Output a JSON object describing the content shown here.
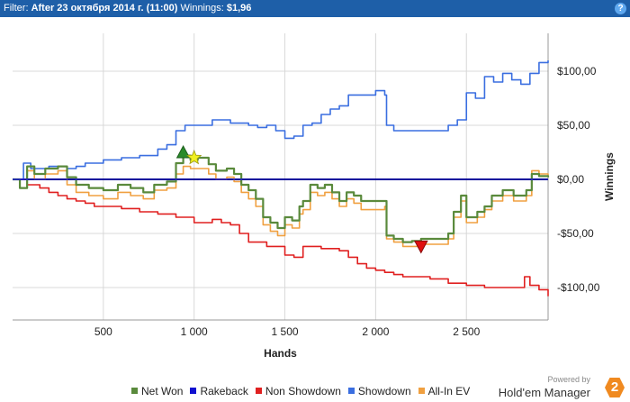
{
  "header": {
    "filter_label": "Filter:",
    "filter_value": "After 23 октября 2014 г. (11:00)",
    "winnings_label": "Winnings:",
    "winnings_value": "$1,96",
    "help_label": "?"
  },
  "branding": {
    "powered_by": "Powered by",
    "product": "Hold'em Manager",
    "logo_text": "2"
  },
  "chart_data": {
    "type": "line",
    "xlabel": "Hands",
    "ylabel": "Winnings",
    "xlim": [
      0,
      2950
    ],
    "ylim": [
      -130,
      135
    ],
    "x_ticks": [
      500,
      1000,
      1500,
      2000,
      2500
    ],
    "x_tick_labels": [
      "500",
      "1 000",
      "1 500",
      "2 000",
      "2 500"
    ],
    "y_ticks": [
      100,
      50,
      0,
      -50,
      -100
    ],
    "y_tick_labels": [
      "$100,00",
      "$50,00",
      "$0,00",
      "-$50,00",
      "-$100,00"
    ],
    "grid": true,
    "legend": "bottom",
    "series": [
      {
        "name": "Net Won",
        "color": "#5a8a3c",
        "points": [
          [
            0,
            0
          ],
          [
            40,
            -8
          ],
          [
            80,
            12
          ],
          [
            120,
            5
          ],
          [
            180,
            10
          ],
          [
            250,
            12
          ],
          [
            300,
            2
          ],
          [
            350,
            -5
          ],
          [
            420,
            -8
          ],
          [
            500,
            -10
          ],
          [
            580,
            -5
          ],
          [
            650,
            -8
          ],
          [
            720,
            -12
          ],
          [
            780,
            -5
          ],
          [
            850,
            -2
          ],
          [
            900,
            15
          ],
          [
            940,
            22
          ],
          [
            980,
            18
          ],
          [
            1020,
            20
          ],
          [
            1080,
            14
          ],
          [
            1120,
            8
          ],
          [
            1180,
            10
          ],
          [
            1220,
            5
          ],
          [
            1260,
            -5
          ],
          [
            1300,
            -10
          ],
          [
            1340,
            -18
          ],
          [
            1380,
            -35
          ],
          [
            1420,
            -40
          ],
          [
            1460,
            -45
          ],
          [
            1500,
            -35
          ],
          [
            1540,
            -38
          ],
          [
            1580,
            -25
          ],
          [
            1600,
            -20
          ],
          [
            1640,
            -5
          ],
          [
            1680,
            -8
          ],
          [
            1720,
            -5
          ],
          [
            1760,
            -12
          ],
          [
            1800,
            -20
          ],
          [
            1840,
            -12
          ],
          [
            1880,
            -15
          ],
          [
            1920,
            -20
          ],
          [
            1960,
            -20
          ],
          [
            2000,
            -20
          ],
          [
            2050,
            -20
          ],
          [
            2060,
            -52
          ],
          [
            2100,
            -55
          ],
          [
            2150,
            -58
          ],
          [
            2200,
            -57
          ],
          [
            2250,
            -55
          ],
          [
            2300,
            -55
          ],
          [
            2350,
            -55
          ],
          [
            2400,
            -50
          ],
          [
            2430,
            -30
          ],
          [
            2470,
            -15
          ],
          [
            2500,
            -35
          ],
          [
            2560,
            -30
          ],
          [
            2600,
            -25
          ],
          [
            2640,
            -15
          ],
          [
            2700,
            -10
          ],
          [
            2760,
            -15
          ],
          [
            2800,
            -15
          ],
          [
            2830,
            -10
          ],
          [
            2860,
            5
          ],
          [
            2900,
            3
          ],
          [
            2950,
            2
          ]
        ]
      },
      {
        "name": "Rakeback",
        "color": "#1010d0",
        "points": [
          [
            0,
            0
          ],
          [
            2950,
            0
          ]
        ]
      },
      {
        "name": "Non Showdown",
        "color": "#e02020",
        "points": [
          [
            0,
            0
          ],
          [
            80,
            -5
          ],
          [
            150,
            -8
          ],
          [
            200,
            -12
          ],
          [
            250,
            -15
          ],
          [
            300,
            -18
          ],
          [
            350,
            -20
          ],
          [
            400,
            -22
          ],
          [
            450,
            -25
          ],
          [
            500,
            -25
          ],
          [
            600,
            -27
          ],
          [
            700,
            -30
          ],
          [
            800,
            -32
          ],
          [
            900,
            -35
          ],
          [
            1000,
            -40
          ],
          [
            1100,
            -37
          ],
          [
            1150,
            -40
          ],
          [
            1200,
            -42
          ],
          [
            1250,
            -50
          ],
          [
            1300,
            -58
          ],
          [
            1400,
            -62
          ],
          [
            1450,
            -62
          ],
          [
            1500,
            -70
          ],
          [
            1550,
            -72
          ],
          [
            1600,
            -62
          ],
          [
            1700,
            -64
          ],
          [
            1800,
            -66
          ],
          [
            1850,
            -72
          ],
          [
            1900,
            -78
          ],
          [
            1950,
            -82
          ],
          [
            2000,
            -84
          ],
          [
            2050,
            -86
          ],
          [
            2100,
            -88
          ],
          [
            2150,
            -90
          ],
          [
            2200,
            -90
          ],
          [
            2300,
            -92
          ],
          [
            2400,
            -96
          ],
          [
            2500,
            -98
          ],
          [
            2600,
            -100
          ],
          [
            2700,
            -100
          ],
          [
            2780,
            -100
          ],
          [
            2820,
            -90
          ],
          [
            2850,
            -98
          ],
          [
            2900,
            -102
          ],
          [
            2950,
            -108
          ]
        ]
      },
      {
        "name": "Showdown",
        "color": "#3a6ee0",
        "points": [
          [
            0,
            0
          ],
          [
            60,
            15
          ],
          [
            100,
            10
          ],
          [
            200,
            12
          ],
          [
            300,
            10
          ],
          [
            350,
            12
          ],
          [
            400,
            15
          ],
          [
            500,
            18
          ],
          [
            600,
            20
          ],
          [
            700,
            22
          ],
          [
            800,
            28
          ],
          [
            850,
            32
          ],
          [
            900,
            45
          ],
          [
            950,
            50
          ],
          [
            1000,
            50
          ],
          [
            1100,
            55
          ],
          [
            1150,
            55
          ],
          [
            1200,
            52
          ],
          [
            1250,
            52
          ],
          [
            1300,
            50
          ],
          [
            1350,
            48
          ],
          [
            1400,
            50
          ],
          [
            1450,
            45
          ],
          [
            1500,
            38
          ],
          [
            1550,
            40
          ],
          [
            1600,
            50
          ],
          [
            1650,
            52
          ],
          [
            1700,
            60
          ],
          [
            1750,
            65
          ],
          [
            1800,
            68
          ],
          [
            1850,
            78
          ],
          [
            1900,
            78
          ],
          [
            2000,
            82
          ],
          [
            2050,
            78
          ],
          [
            2060,
            50
          ],
          [
            2100,
            45
          ],
          [
            2200,
            45
          ],
          [
            2300,
            45
          ],
          [
            2400,
            50
          ],
          [
            2450,
            55
          ],
          [
            2500,
            80
          ],
          [
            2550,
            75
          ],
          [
            2600,
            95
          ],
          [
            2650,
            90
          ],
          [
            2700,
            98
          ],
          [
            2750,
            92
          ],
          [
            2800,
            88
          ],
          [
            2850,
            98
          ],
          [
            2900,
            108
          ],
          [
            2950,
            110
          ]
        ]
      },
      {
        "name": "All-In EV",
        "color": "#f0a040",
        "points": [
          [
            0,
            0
          ],
          [
            40,
            -8
          ],
          [
            80,
            8
          ],
          [
            120,
            0
          ],
          [
            180,
            5
          ],
          [
            250,
            8
          ],
          [
            300,
            -5
          ],
          [
            350,
            -12
          ],
          [
            420,
            -15
          ],
          [
            500,
            -18
          ],
          [
            580,
            -12
          ],
          [
            650,
            -15
          ],
          [
            720,
            -18
          ],
          [
            780,
            -10
          ],
          [
            850,
            -8
          ],
          [
            900,
            5
          ],
          [
            940,
            12
          ],
          [
            980,
            10
          ],
          [
            1020,
            10
          ],
          [
            1080,
            5
          ],
          [
            1120,
            0
          ],
          [
            1180,
            2
          ],
          [
            1220,
            -2
          ],
          [
            1260,
            -12
          ],
          [
            1300,
            -18
          ],
          [
            1340,
            -25
          ],
          [
            1380,
            -42
          ],
          [
            1420,
            -48
          ],
          [
            1460,
            -52
          ],
          [
            1500,
            -42
          ],
          [
            1540,
            -45
          ],
          [
            1580,
            -32
          ],
          [
            1600,
            -28
          ],
          [
            1640,
            -12
          ],
          [
            1680,
            -15
          ],
          [
            1720,
            -12
          ],
          [
            1760,
            -18
          ],
          [
            1800,
            -25
          ],
          [
            1840,
            -18
          ],
          [
            1880,
            -22
          ],
          [
            1920,
            -28
          ],
          [
            1960,
            -28
          ],
          [
            2000,
            -28
          ],
          [
            2050,
            -25
          ],
          [
            2060,
            -55
          ],
          [
            2100,
            -58
          ],
          [
            2150,
            -62
          ],
          [
            2200,
            -62
          ],
          [
            2250,
            -60
          ],
          [
            2300,
            -60
          ],
          [
            2350,
            -60
          ],
          [
            2400,
            -55
          ],
          [
            2430,
            -35
          ],
          [
            2470,
            -20
          ],
          [
            2500,
            -40
          ],
          [
            2560,
            -35
          ],
          [
            2600,
            -28
          ],
          [
            2640,
            -20
          ],
          [
            2700,
            -15
          ],
          [
            2760,
            -20
          ],
          [
            2800,
            -20
          ],
          [
            2830,
            -15
          ],
          [
            2860,
            8
          ],
          [
            2900,
            5
          ],
          [
            2950,
            4
          ]
        ]
      }
    ],
    "markers": [
      {
        "type": "triangle-up",
        "color": "#2a8a2a",
        "x": 940,
        "y": 25
      },
      {
        "type": "star",
        "color": "#f0f020",
        "x": 1000,
        "y": 20
      },
      {
        "type": "triangle-down",
        "color": "#e01010",
        "x": 2250,
        "y": -62
      }
    ]
  }
}
